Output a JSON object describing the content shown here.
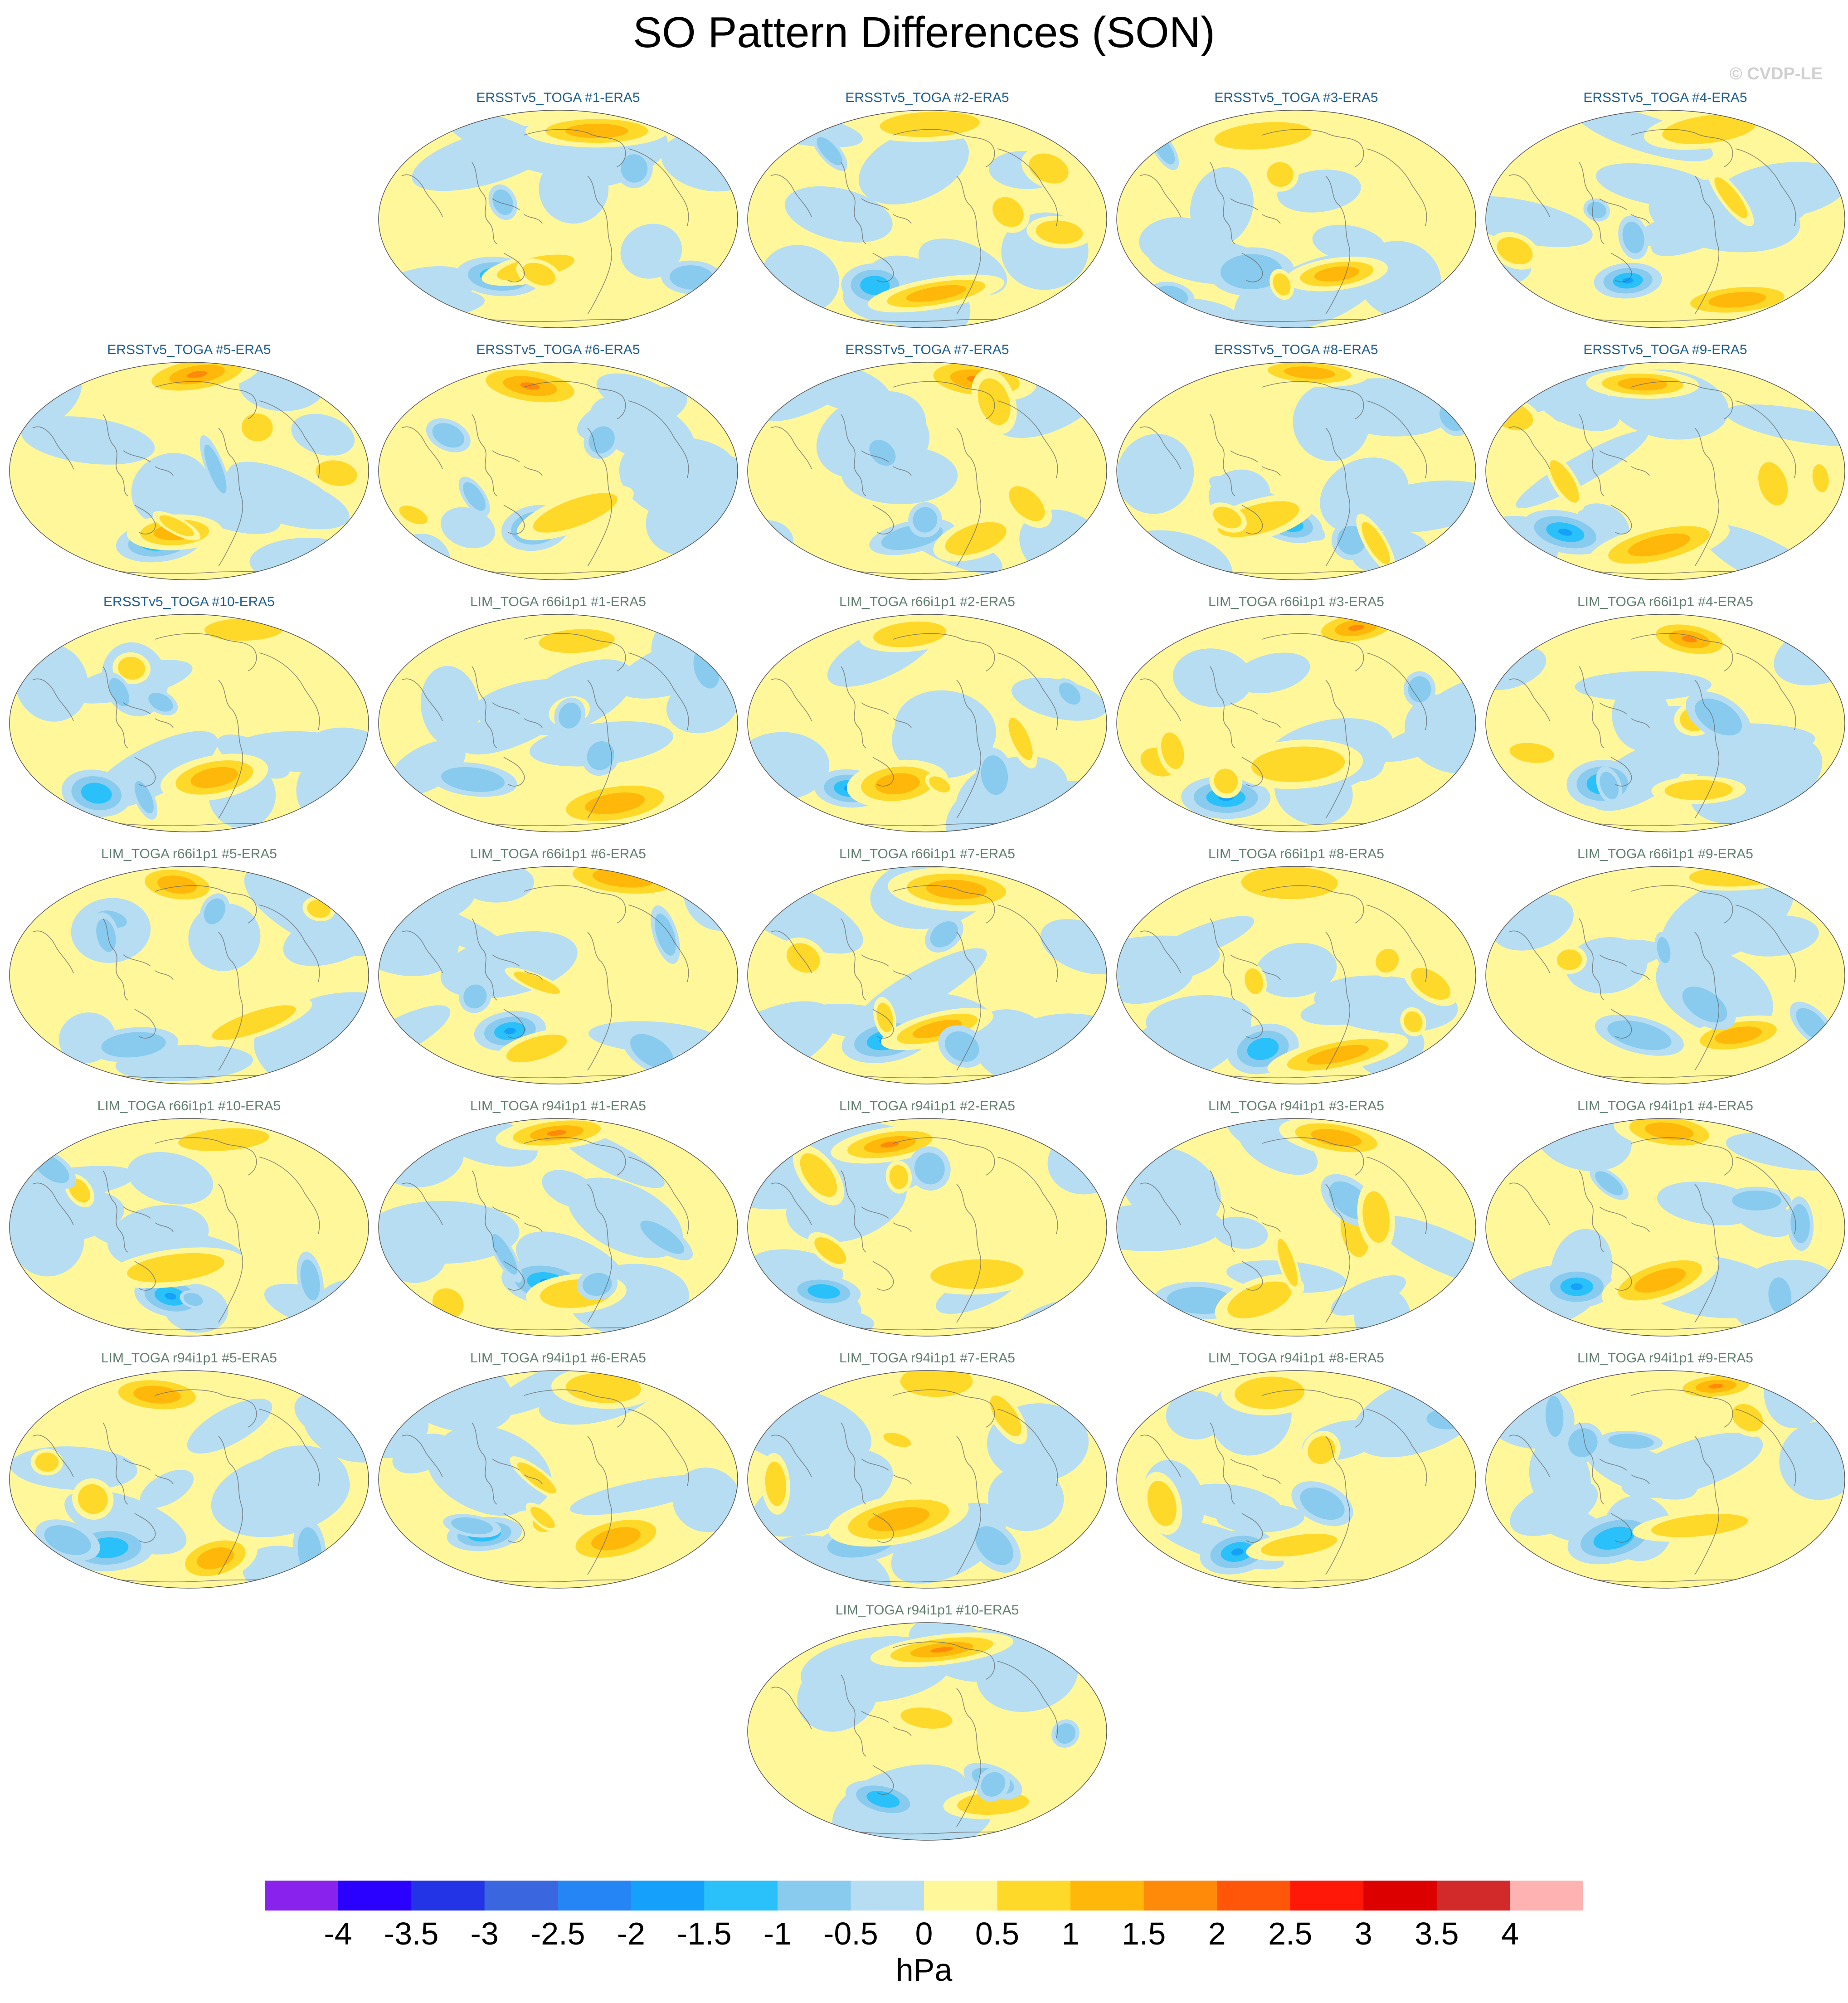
{
  "title": "SO Pattern Differences (SON)",
  "copyright": "© CVDP-LE",
  "title_colors": {
    "ersst": "#1f5f8b",
    "lim": "#5f7f6f"
  },
  "panels": [
    {
      "label": "ERSSTv5_TOGA #1-ERA5",
      "group": "ersst"
    },
    {
      "label": "ERSSTv5_TOGA #2-ERA5",
      "group": "ersst"
    },
    {
      "label": "ERSSTv5_TOGA #3-ERA5",
      "group": "ersst"
    },
    {
      "label": "ERSSTv5_TOGA #4-ERA5",
      "group": "ersst"
    },
    {
      "label": "ERSSTv5_TOGA #5-ERA5",
      "group": "ersst"
    },
    {
      "label": "ERSSTv5_TOGA #6-ERA5",
      "group": "ersst"
    },
    {
      "label": "ERSSTv5_TOGA #7-ERA5",
      "group": "ersst"
    },
    {
      "label": "ERSSTv5_TOGA #8-ERA5",
      "group": "ersst"
    },
    {
      "label": "ERSSTv5_TOGA #9-ERA5",
      "group": "ersst"
    },
    {
      "label": "ERSSTv5_TOGA #10-ERA5",
      "group": "ersst"
    },
    {
      "label": "LIM_TOGA r66i1p1 #1-ERA5",
      "group": "lim"
    },
    {
      "label": "LIM_TOGA r66i1p1 #2-ERA5",
      "group": "lim"
    },
    {
      "label": "LIM_TOGA r66i1p1 #3-ERA5",
      "group": "lim"
    },
    {
      "label": "LIM_TOGA r66i1p1 #4-ERA5",
      "group": "lim"
    },
    {
      "label": "LIM_TOGA r66i1p1 #5-ERA5",
      "group": "lim"
    },
    {
      "label": "LIM_TOGA r66i1p1 #6-ERA5",
      "group": "lim"
    },
    {
      "label": "LIM_TOGA r66i1p1 #7-ERA5",
      "group": "lim"
    },
    {
      "label": "LIM_TOGA r66i1p1 #8-ERA5",
      "group": "lim"
    },
    {
      "label": "LIM_TOGA r66i1p1 #9-ERA5",
      "group": "lim"
    },
    {
      "label": "LIM_TOGA r66i1p1 #10-ERA5",
      "group": "lim"
    },
    {
      "label": "LIM_TOGA r94i1p1 #1-ERA5",
      "group": "lim"
    },
    {
      "label": "LIM_TOGA r94i1p1 #2-ERA5",
      "group": "lim"
    },
    {
      "label": "LIM_TOGA r94i1p1 #3-ERA5",
      "group": "lim"
    },
    {
      "label": "LIM_TOGA r94i1p1 #4-ERA5",
      "group": "lim"
    },
    {
      "label": "LIM_TOGA r94i1p1 #5-ERA5",
      "group": "lim"
    },
    {
      "label": "LIM_TOGA r94i1p1 #6-ERA5",
      "group": "lim"
    },
    {
      "label": "LIM_TOGA r94i1p1 #7-ERA5",
      "group": "lim"
    },
    {
      "label": "LIM_TOGA r94i1p1 #8-ERA5",
      "group": "lim"
    },
    {
      "label": "LIM_TOGA r94i1p1 #9-ERA5",
      "group": "lim"
    },
    {
      "label": "LIM_TOGA r94i1p1 #10-ERA5",
      "group": "lim"
    }
  ],
  "colorbar": {
    "units": "hPa",
    "labels": [
      "-4",
      "-3.5",
      "-3",
      "-2.5",
      "-2",
      "-1.5",
      "-1",
      "-0.5",
      "0",
      "0.5",
      "1",
      "1.5",
      "2",
      "2.5",
      "3",
      "3.5",
      "4"
    ],
    "colors": [
      "#8a22ee",
      "#2a00ff",
      "#2234e6",
      "#3a66e0",
      "#2585f5",
      "#14a0fb",
      "#2ac0fa",
      "#88cbee",
      "#b6ddf2",
      "#fff79a",
      "#ffd92a",
      "#ffb70a",
      "#ff8a0a",
      "#ff560a",
      "#ff1808",
      "#dc0000",
      "#d22a2a",
      "#ffb2b2"
    ]
  }
}
